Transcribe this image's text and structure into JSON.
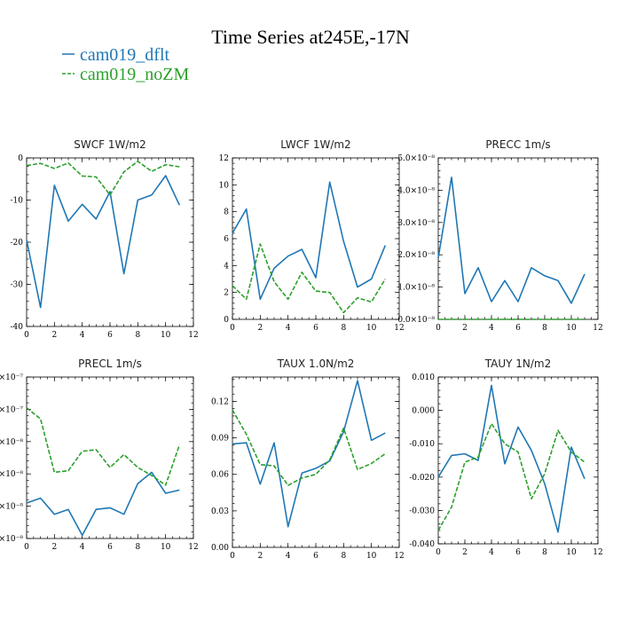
{
  "title": "Time Series at245E,-17N",
  "legend": [
    {
      "label": "cam019_dflt",
      "color": "#1f77b4",
      "dashed": false
    },
    {
      "label": "cam019_noZM",
      "color": "#2ca02c",
      "dashed": true
    }
  ],
  "chart_data": [
    {
      "type": "line",
      "title": "SWCF   1W/m2",
      "x": [
        0,
        1,
        2,
        3,
        4,
        5,
        6,
        7,
        8,
        9,
        10,
        11
      ],
      "xlim": [
        0,
        12
      ],
      "xticks": [
        0,
        2,
        4,
        6,
        8,
        10,
        12
      ],
      "ylim": [
        -40,
        0
      ],
      "yticks": [
        -40,
        -30,
        -20,
        -10,
        0
      ],
      "ytick_labels": [
        "-40",
        "-30",
        "-20",
        "-10",
        "0"
      ],
      "series": [
        {
          "name": "cam019_dflt",
          "values": [
            -19.5,
            -35.5,
            -6.5,
            -15,
            -11,
            -14.5,
            -8,
            -27.5,
            -10,
            -8.8,
            -4.2,
            -11.2
          ]
        },
        {
          "name": "cam019_noZM",
          "values": [
            -1.8,
            -1.3,
            -2.5,
            -1.2,
            -4.3,
            -4.5,
            -8.8,
            -3.3,
            -0.8,
            -3.2,
            -1.6,
            -2.1
          ]
        }
      ]
    },
    {
      "type": "line",
      "title": "LWCF   1W/m2",
      "x": [
        0,
        1,
        2,
        3,
        4,
        5,
        6,
        7,
        8,
        9,
        10,
        11
      ],
      "xlim": [
        0,
        12
      ],
      "xticks": [
        0,
        2,
        4,
        6,
        8,
        10,
        12
      ],
      "ylim": [
        0,
        12
      ],
      "yticks": [
        0,
        2,
        4,
        6,
        8,
        10,
        12
      ],
      "ytick_labels": [
        "0",
        "2",
        "4",
        "6",
        "8",
        "10",
        "12"
      ],
      "series": [
        {
          "name": "cam019_dflt",
          "values": [
            6.4,
            8.2,
            1.5,
            3.8,
            4.7,
            5.2,
            3.1,
            10.2,
            5.8,
            2.4,
            3.0,
            5.5
          ]
        },
        {
          "name": "cam019_noZM",
          "values": [
            2.5,
            1.5,
            5.6,
            2.8,
            1.5,
            3.5,
            2.1,
            2.0,
            0.5,
            1.6,
            1.3,
            3.0
          ]
        }
      ]
    },
    {
      "type": "line",
      "title": "PRECC   1m/s",
      "x": [
        0,
        1,
        2,
        3,
        4,
        5,
        6,
        7,
        8,
        9,
        10,
        11
      ],
      "xlim": [
        0,
        12
      ],
      "xticks": [
        0,
        2,
        4,
        6,
        8,
        10,
        12
      ],
      "ylim": [
        0,
        5e-08
      ],
      "yticks": [
        0,
        1e-08,
        2e-08,
        3e-08,
        4e-08,
        5e-08
      ],
      "ytick_labels": [
        "0.0×10⁻⁸",
        "1.0×10⁻⁸",
        "2.0×10⁻⁸",
        "3.0×10⁻⁸",
        "4.0×10⁻⁸",
        "5.0×10⁻⁸"
      ],
      "series": [
        {
          "name": "cam019_dflt",
          "values": [
            1.9e-08,
            4.4e-08,
            8e-09,
            1.6e-08,
            5.5e-09,
            1.2e-08,
            5.5e-09,
            1.6e-08,
            1.35e-08,
            1.2e-08,
            5e-09,
            1.4e-08
          ]
        },
        {
          "name": "cam019_noZM",
          "values": [
            0,
            0,
            0,
            0,
            0,
            0,
            0,
            0,
            0,
            0,
            0,
            0
          ]
        }
      ]
    },
    {
      "type": "line",
      "title": "PRECL   1m/s",
      "x": [
        0,
        1,
        2,
        3,
        4,
        5,
        6,
        7,
        8,
        9,
        10,
        11
      ],
      "xlim": [
        0,
        12
      ],
      "xticks": [
        0,
        2,
        4,
        6,
        8,
        10,
        12
      ],
      "ylim": [
        2e-08,
        1.2e-07
      ],
      "yticks": [
        2e-08,
        4e-08,
        6e-08,
        8e-08,
        1e-07,
        1.2e-07
      ],
      "ytick_labels": [
        "2×10⁻⁸",
        "4×10⁻⁸",
        "6×10⁻⁸",
        "8×10⁻⁸",
        "1.0×10⁻⁷",
        "1.2×10⁻⁷"
      ],
      "series": [
        {
          "name": "cam019_dflt",
          "values": [
            4.2e-08,
            4.5e-08,
            3.5e-08,
            3.8e-08,
            2.2e-08,
            3.8e-08,
            3.9e-08,
            3.5e-08,
            5.4e-08,
            6.1e-08,
            4.8e-08,
            5e-08
          ]
        },
        {
          "name": "cam019_noZM",
          "values": [
            1.01e-07,
            9.4e-08,
            6.1e-08,
            6.2e-08,
            7.4e-08,
            7.5e-08,
            6.4e-08,
            7.2e-08,
            6.4e-08,
            5.9e-08,
            5.3e-08,
            7.8e-08
          ]
        }
      ]
    },
    {
      "type": "line",
      "title": "TAUX   1.0N/m2",
      "x": [
        0,
        1,
        2,
        3,
        4,
        5,
        6,
        7,
        8,
        9,
        10,
        11
      ],
      "xlim": [
        0,
        12
      ],
      "xticks": [
        0,
        2,
        4,
        6,
        8,
        10,
        12
      ],
      "ylim": [
        0,
        0.14
      ],
      "yticks": [
        0,
        0.03,
        0.06,
        0.09,
        0.12
      ],
      "ytick_labels": [
        "0.00",
        "0.03",
        "0.06",
        "0.09",
        "0.12"
      ],
      "series": [
        {
          "name": "cam019_dflt",
          "values": [
            0.085,
            0.086,
            0.052,
            0.086,
            0.017,
            0.061,
            0.065,
            0.071,
            0.095,
            0.137,
            0.088,
            0.094
          ]
        },
        {
          "name": "cam019_noZM",
          "values": [
            0.113,
            0.093,
            0.068,
            0.067,
            0.051,
            0.057,
            0.06,
            0.072,
            0.098,
            0.064,
            0.069,
            0.077
          ]
        }
      ]
    },
    {
      "type": "line",
      "title": "TAUY   1N/m2",
      "x": [
        0,
        1,
        2,
        3,
        4,
        5,
        6,
        7,
        8,
        9,
        10,
        11
      ],
      "xlim": [
        0,
        12
      ],
      "xticks": [
        0,
        2,
        4,
        6,
        8,
        10,
        12
      ],
      "ylim": [
        -0.04,
        0.01
      ],
      "yticks": [
        -0.04,
        -0.03,
        -0.02,
        -0.01,
        0,
        0.01
      ],
      "ytick_labels": [
        "-0.040",
        "-0.030",
        "-0.020",
        "-0.010",
        "0.000",
        "0.010"
      ],
      "series": [
        {
          "name": "cam019_dflt",
          "values": [
            -0.02,
            -0.0135,
            -0.013,
            -0.015,
            0.0075,
            -0.016,
            -0.005,
            -0.012,
            -0.022,
            -0.0365,
            -0.011,
            -0.0205
          ]
        },
        {
          "name": "cam019_noZM",
          "values": [
            -0.036,
            -0.029,
            -0.0155,
            -0.014,
            -0.004,
            -0.01,
            -0.0125,
            -0.0265,
            -0.019,
            -0.006,
            -0.0125,
            -0.0155
          ]
        }
      ]
    }
  ]
}
